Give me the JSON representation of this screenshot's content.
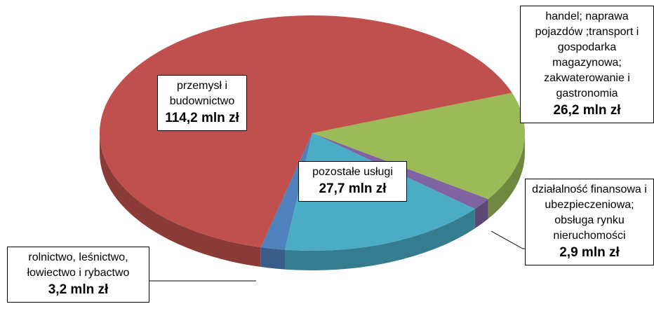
{
  "chart_data": {
    "type": "pie",
    "categories": [
      "handel; naprawa pojazdów ;transport i gospodarka magazynowa; zakwaterowanie i gastronomia",
      "działalność finansowa i ubezpieczeniowa; obsługa rynku nieruchomości",
      "pozostałe usługi",
      "rolnictwo, leśnictwo, łowiectwo i rybactwo",
      "przemysł i budownictwo"
    ],
    "values": [
      26.2,
      2.9,
      27.7,
      3.2,
      114.2
    ],
    "value_labels": [
      "26,2 mln zł",
      "2,9 mln zł",
      "27,7 mln zł",
      "3,2 mln zł",
      "114,2 mln zł"
    ],
    "colors": [
      "#9bbb59",
      "#8064a2",
      "#4bacc6",
      "#4f81bd",
      "#c0504d"
    ]
  }
}
